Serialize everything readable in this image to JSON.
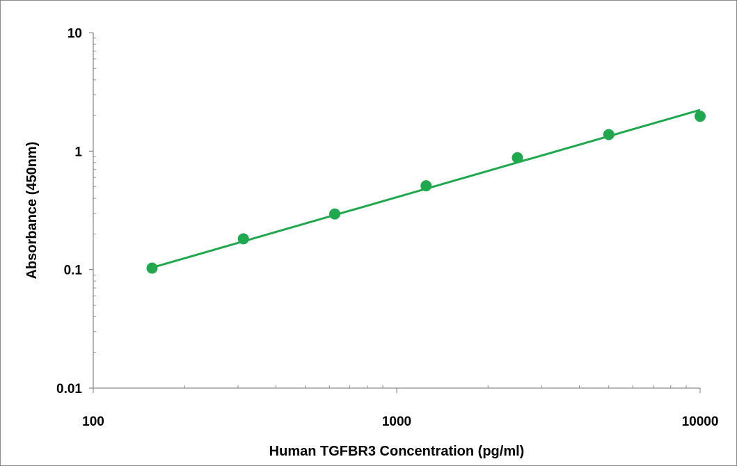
{
  "chart_data": {
    "type": "scatter",
    "title": "",
    "xlabel": "Human TGFBR3 Concentration (pg/ml)",
    "ylabel": "Absorbance (450nm)",
    "x_scale": "log",
    "y_scale": "log",
    "xlim": [
      100,
      10000
    ],
    "ylim": [
      0.01,
      10
    ],
    "x_ticks": [
      100,
      1000,
      10000
    ],
    "x_tick_labels": [
      "100",
      "1000",
      "10000"
    ],
    "y_ticks": [
      0.01,
      0.1,
      1,
      10
    ],
    "y_tick_labels": [
      "0.01",
      "0.1",
      "1",
      "10"
    ],
    "grid": false,
    "legend": "none",
    "color": "#1fa84e",
    "series": [
      {
        "x": [
          156.25,
          312.5,
          625,
          1250,
          2500,
          5000,
          10000
        ],
        "y": [
          0.103,
          0.182,
          0.295,
          0.51,
          0.88,
          1.38,
          1.97
        ]
      }
    ],
    "fit_line": {
      "x": [
        156.25,
        10000
      ],
      "y": [
        0.104,
        2.23
      ]
    }
  }
}
